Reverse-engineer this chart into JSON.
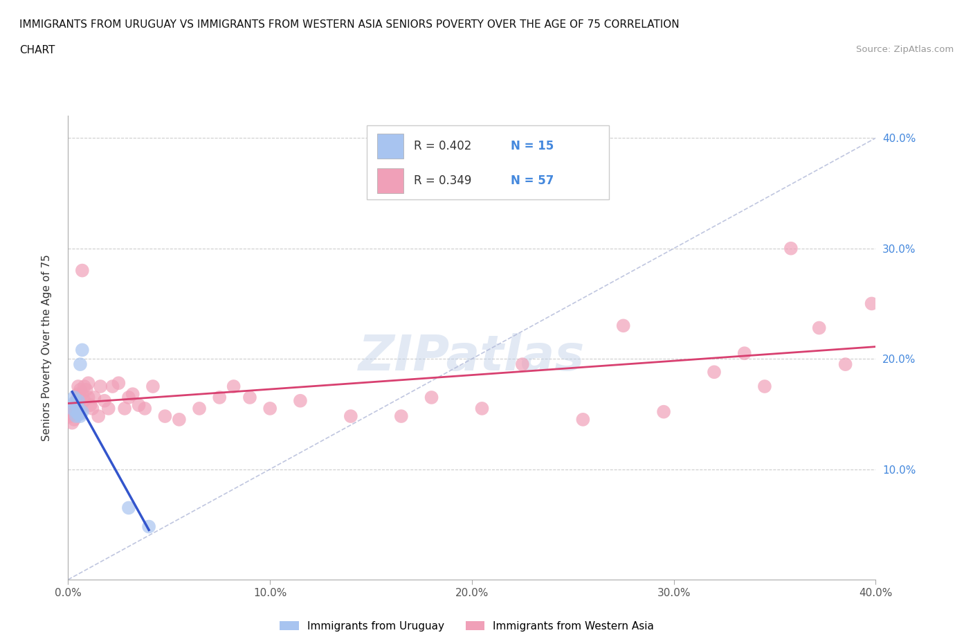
{
  "title_line1": "IMMIGRANTS FROM URUGUAY VS IMMIGRANTS FROM WESTERN ASIA SENIORS POVERTY OVER THE AGE OF 75 CORRELATION",
  "title_line2": "CHART",
  "source": "Source: ZipAtlas.com",
  "ylabel": "Seniors Poverty Over the Age of 75",
  "xlim": [
    0.0,
    0.4
  ],
  "ylim": [
    0.0,
    0.42
  ],
  "xticks": [
    0.0,
    0.1,
    0.2,
    0.3,
    0.4
  ],
  "yticks": [
    0.1,
    0.2,
    0.3,
    0.4
  ],
  "xticklabels": [
    "0.0%",
    "10.0%",
    "20.0%",
    "30.0%",
    "40.0%"
  ],
  "yticklabels_right": [
    "10.0%",
    "20.0%",
    "30.0%",
    "40.0%"
  ],
  "watermark": "ZIPatlas",
  "legend_r1": "R = 0.402",
  "legend_n1": "N = 15",
  "legend_r2": "R = 0.349",
  "legend_n2": "N = 57",
  "color_uruguay": "#a8c4f0",
  "color_western_asia": "#f0a0b8",
  "line_color_uruguay": "#3355cc",
  "line_color_western_asia": "#d84070",
  "dashed_line_color": "#b0b8d8",
  "grid_color": "#cccccc",
  "label_uruguay": "Immigrants from Uruguay",
  "label_western_asia": "Immigrants from Western Asia",
  "text_color_r": "#333333",
  "text_color_n": "#4488dd",
  "right_axis_color": "#4488dd",
  "uruguay_x": [
    0.002,
    0.003,
    0.003,
    0.004,
    0.004,
    0.005,
    0.005,
    0.005,
    0.006,
    0.006,
    0.006,
    0.007,
    0.007,
    0.03,
    0.04
  ],
  "uruguay_y": [
    0.155,
    0.16,
    0.165,
    0.152,
    0.148,
    0.15,
    0.155,
    0.162,
    0.195,
    0.15,
    0.148,
    0.152,
    0.208,
    0.065,
    0.048
  ],
  "western_asia_x": [
    0.001,
    0.002,
    0.002,
    0.003,
    0.003,
    0.004,
    0.004,
    0.005,
    0.005,
    0.005,
    0.006,
    0.006,
    0.007,
    0.007,
    0.008,
    0.008,
    0.009,
    0.01,
    0.01,
    0.011,
    0.012,
    0.013,
    0.015,
    0.016,
    0.018,
    0.02,
    0.022,
    0.025,
    0.028,
    0.03,
    0.032,
    0.035,
    0.038,
    0.042,
    0.048,
    0.055,
    0.065,
    0.075,
    0.082,
    0.09,
    0.1,
    0.115,
    0.14,
    0.165,
    0.18,
    0.205,
    0.225,
    0.255,
    0.275,
    0.295,
    0.32,
    0.335,
    0.345,
    0.358,
    0.372,
    0.385,
    0.398
  ],
  "western_asia_y": [
    0.148,
    0.142,
    0.15,
    0.145,
    0.155,
    0.162,
    0.155,
    0.175,
    0.162,
    0.168,
    0.155,
    0.172,
    0.168,
    0.28,
    0.162,
    0.175,
    0.172,
    0.178,
    0.165,
    0.158,
    0.155,
    0.165,
    0.148,
    0.175,
    0.162,
    0.155,
    0.175,
    0.178,
    0.155,
    0.165,
    0.168,
    0.158,
    0.155,
    0.175,
    0.148,
    0.145,
    0.155,
    0.165,
    0.175,
    0.165,
    0.155,
    0.162,
    0.148,
    0.148,
    0.165,
    0.155,
    0.195,
    0.145,
    0.23,
    0.152,
    0.188,
    0.205,
    0.175,
    0.3,
    0.228,
    0.195,
    0.25
  ]
}
